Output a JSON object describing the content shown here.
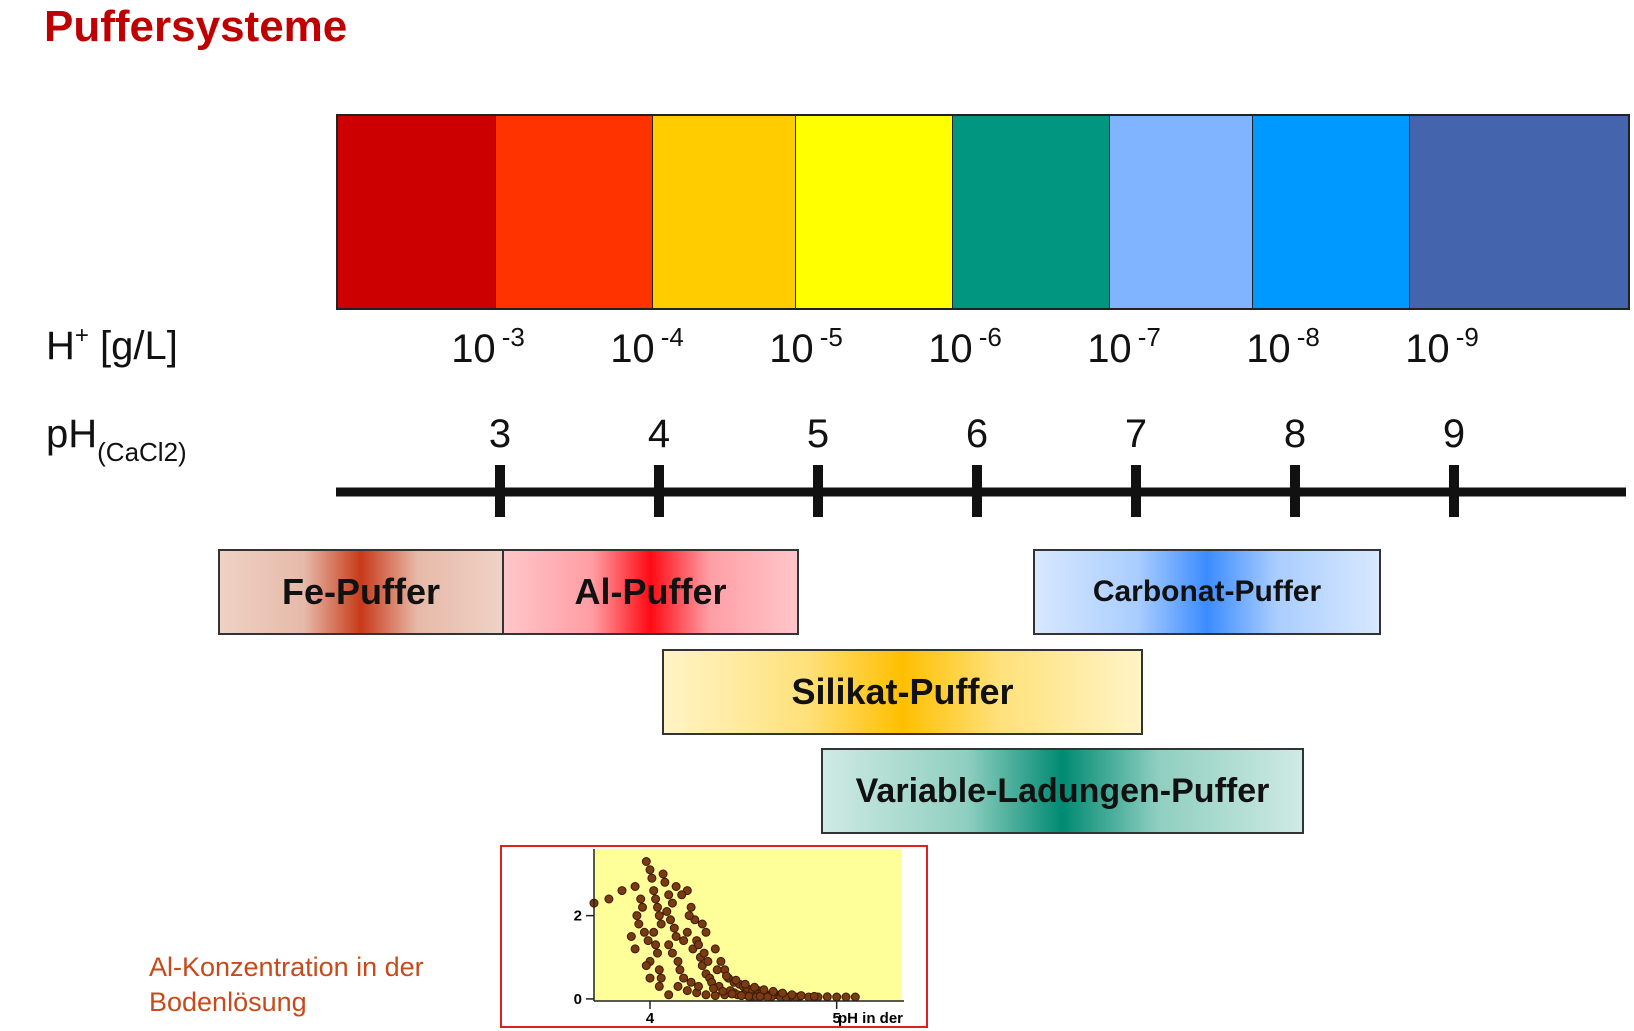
{
  "title": "Puffersysteme",
  "colors": {
    "title": "#c00000",
    "scale": [
      "#cc0000",
      "#ff3300",
      "#ffcc00",
      "#ffff00",
      "#009680",
      "#80b4ff",
      "#0099ff",
      "#4464ad"
    ]
  },
  "h_label": {
    "main": "H",
    "sup": "+",
    "unit": " [g/L]"
  },
  "h_values": [
    {
      "base": "10",
      "exp": "-3"
    },
    {
      "base": "10",
      "exp": "-4"
    },
    {
      "base": "10",
      "exp": "-5"
    },
    {
      "base": "10",
      "exp": "-6"
    },
    {
      "base": "10",
      "exp": "-7"
    },
    {
      "base": "10",
      "exp": "-8"
    },
    {
      "base": "10",
      "exp": "-9"
    }
  ],
  "ph_label": {
    "main": "pH",
    "sub": "(CaCl2)"
  },
  "ph_ticks": [
    "3",
    "4",
    "5",
    "6",
    "7",
    "8",
    "9"
  ],
  "buffers": {
    "fe": "Fe-Puffer",
    "al": "Al-Puffer",
    "carbonat": "Carbonat-Puffer",
    "silikat": "Silikat-Puffer",
    "variable": "Variable-Ladungen-Puffer"
  },
  "caption": "Al-Konzentration in der Bodenlösung",
  "chart_data": {
    "type": "scatter",
    "title": "",
    "xlabel": "pH in der",
    "ylabel": "",
    "x_ticks": [
      "4",
      "5"
    ],
    "y_ticks": [
      "0",
      "2"
    ],
    "xlim": [
      3.7,
      5.35
    ],
    "ylim": [
      -0.05,
      3.6
    ],
    "background": "#ffff99",
    "point_color": "#7a3a12",
    "points": [
      [
        3.85,
        2.6
      ],
      [
        3.92,
        2.7
      ],
      [
        3.98,
        3.3
      ],
      [
        4.0,
        3.1
      ],
      [
        3.95,
        2.4
      ],
      [
        3.96,
        2.2
      ],
      [
        3.93,
        2.0
      ],
      [
        3.94,
        1.8
      ],
      [
        3.97,
        1.6
      ],
      [
        3.99,
        1.4
      ],
      [
        4.01,
        2.9
      ],
      [
        4.02,
        2.6
      ],
      [
        4.03,
        2.4
      ],
      [
        4.04,
        2.2
      ],
      [
        4.05,
        2.0
      ],
      [
        4.06,
        1.8
      ],
      [
        4.02,
        1.6
      ],
      [
        4.03,
        1.3
      ],
      [
        4.04,
        1.1
      ],
      [
        4.0,
        0.9
      ],
      [
        4.05,
        0.7
      ],
      [
        4.06,
        0.5
      ],
      [
        4.08,
        2.8
      ],
      [
        4.1,
        2.5
      ],
      [
        4.12,
        2.3
      ],
      [
        4.09,
        2.1
      ],
      [
        4.11,
        1.9
      ],
      [
        4.13,
        1.7
      ],
      [
        4.14,
        1.5
      ],
      [
        4.1,
        1.3
      ],
      [
        4.12,
        1.1
      ],
      [
        4.15,
        0.9
      ],
      [
        4.16,
        0.7
      ],
      [
        4.18,
        0.5
      ],
      [
        4.2,
        2.6
      ],
      [
        4.22,
        2.2
      ],
      [
        4.24,
        1.9
      ],
      [
        4.2,
        1.6
      ],
      [
        4.25,
        1.4
      ],
      [
        4.23,
        1.2
      ],
      [
        4.27,
        1.0
      ],
      [
        4.28,
        0.8
      ],
      [
        4.3,
        0.6
      ],
      [
        4.32,
        0.5
      ],
      [
        4.3,
        1.6
      ],
      [
        4.35,
        1.2
      ],
      [
        4.38,
        0.9
      ],
      [
        4.4,
        0.7
      ],
      [
        4.42,
        0.5
      ],
      [
        4.45,
        0.4
      ],
      [
        4.48,
        0.35
      ],
      [
        4.5,
        0.3
      ],
      [
        4.52,
        0.25
      ],
      [
        4.55,
        0.2
      ],
      [
        4.58,
        0.2
      ],
      [
        4.6,
        0.15
      ],
      [
        4.62,
        0.12
      ],
      [
        4.65,
        0.1
      ],
      [
        4.68,
        0.1
      ],
      [
        4.7,
        0.08
      ],
      [
        4.75,
        0.06
      ],
      [
        4.8,
        0.05
      ],
      [
        4.85,
        0.04
      ],
      [
        4.9,
        0.04
      ],
      [
        5.0,
        0.03
      ],
      [
        5.1,
        0.02
      ],
      [
        4.15,
        0.3
      ],
      [
        4.2,
        0.2
      ],
      [
        4.25,
        0.15
      ],
      [
        4.3,
        0.1
      ],
      [
        4.35,
        0.08
      ],
      [
        4.4,
        0.1
      ],
      [
        4.45,
        0.15
      ],
      [
        4.5,
        0.1
      ],
      [
        4.55,
        0.05
      ],
      [
        4.6,
        0.08
      ],
      [
        4.65,
        0.05
      ],
      [
        4.7,
        0.03
      ],
      [
        4.05,
        0.3
      ],
      [
        4.1,
        0.1
      ],
      [
        4.0,
        0.5
      ],
      [
        3.98,
        0.8
      ],
      [
        4.18,
        1.4
      ],
      [
        4.28,
        1.8
      ],
      [
        4.33,
        0.4
      ],
      [
        4.37,
        0.3
      ],
      [
        4.43,
        0.2
      ],
      [
        4.47,
        0.1
      ],
      [
        4.53,
        0.06
      ],
      [
        4.57,
        0.04
      ],
      [
        4.63,
        0.02
      ],
      [
        4.73,
        0.02
      ],
      [
        4.78,
        0.01
      ],
      [
        4.22,
        0.4
      ],
      [
        4.26,
        0.3
      ],
      [
        4.34,
        0.25
      ],
      [
        4.39,
        0.18
      ],
      [
        4.44,
        0.12
      ],
      [
        4.49,
        0.08
      ],
      [
        4.59,
        0.06
      ],
      [
        3.7,
        2.3
      ],
      [
        3.78,
        2.4
      ],
      [
        3.9,
        1.5
      ],
      [
        3.92,
        1.2
      ],
      [
        4.07,
        3.0
      ],
      [
        4.14,
        2.7
      ],
      [
        4.17,
        2.5
      ],
      [
        4.21,
        2.0
      ],
      [
        4.26,
        1.3
      ],
      [
        4.29,
        1.1
      ],
      [
        4.31,
        0.9
      ],
      [
        4.36,
        0.7
      ],
      [
        4.41,
        0.55
      ],
      [
        4.46,
        0.45
      ],
      [
        4.51,
        0.35
      ],
      [
        4.56,
        0.28
      ],
      [
        4.61,
        0.22
      ],
      [
        4.66,
        0.18
      ],
      [
        4.71,
        0.14
      ],
      [
        4.76,
        0.1
      ],
      [
        4.81,
        0.08
      ],
      [
        4.88,
        0.06
      ],
      [
        4.95,
        0.05
      ],
      [
        5.05,
        0.03
      ]
    ]
  }
}
